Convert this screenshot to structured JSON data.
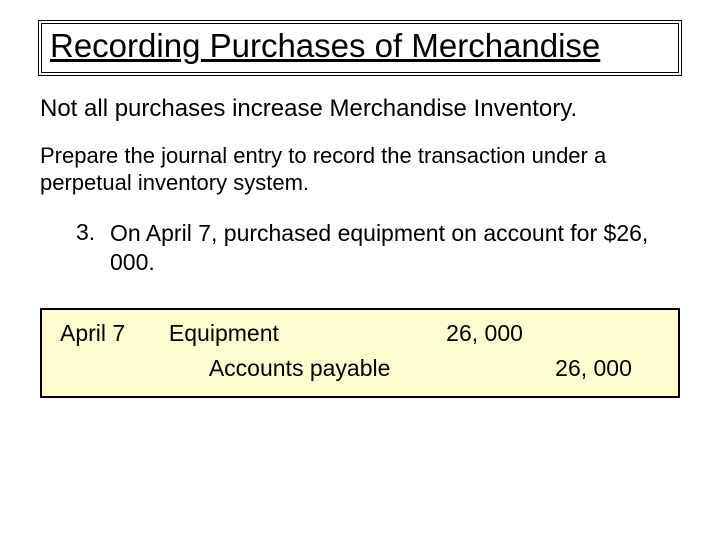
{
  "title": "Recording Purchases of Merchandise",
  "lead": "Not all purchases increase Merchandise Inventory.",
  "instruction": "Prepare the journal entry to record the transaction under a perpetual inventory system.",
  "item": {
    "number": "3.",
    "text": "On April 7, purchased equipment on account for $26, 000."
  },
  "journal": {
    "date": "April 7",
    "debit_account": "Equipment",
    "debit_amount": "26, 000",
    "credit_account": "Accounts payable",
    "credit_amount": "26, 000"
  },
  "colors": {
    "journal_bg": "#fffdcf",
    "border": "#000000",
    "text": "#000000",
    "page_bg": "#ffffff"
  },
  "typography": {
    "title_fontsize": 33,
    "lead_fontsize": 24,
    "body_fontsize": 23,
    "font_family": "Comic Sans MS"
  }
}
